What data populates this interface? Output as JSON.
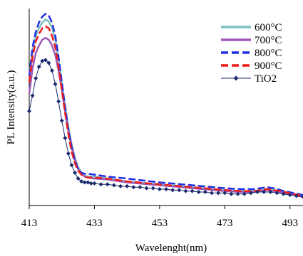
{
  "chart_data": {
    "type": "line",
    "title": "",
    "xlabel": "Wavelenght(nm)",
    "ylabel": "PL Intensity(a.u.)",
    "xlim": [
      413,
      497
    ],
    "ylim": [
      0,
      100
    ],
    "xticks": [
      413,
      433,
      453,
      473,
      493
    ],
    "xtick_labels": [
      "413",
      "433",
      "453",
      "473",
      "493"
    ],
    "yticks_shown": false,
    "grid": false,
    "legend_position": "top-right",
    "series": [
      {
        "name": "600°C",
        "color": "#7fbfbf",
        "dash": "solid",
        "marker": "none",
        "x": [
          413,
          414,
          415,
          416,
          417,
          418,
          419,
          420,
          421,
          422,
          423,
          424,
          425,
          426,
          427,
          428,
          429,
          430,
          431,
          433,
          437,
          443,
          453,
          463,
          473,
          478,
          482,
          484,
          486,
          488,
          490,
          494,
          497
        ],
        "y": [
          66,
          80,
          88,
          92,
          95,
          96.5,
          95.5,
          92,
          86,
          76,
          64,
          52,
          41,
          32,
          25,
          20,
          17,
          15.5,
          15,
          15,
          14,
          12.5,
          11,
          9.5,
          8,
          7.5,
          7.5,
          8,
          8.5,
          8,
          7.5,
          6,
          5
        ]
      },
      {
        "name": "700°C",
        "color": "#9b59b6",
        "dash": "solid",
        "marker": "none",
        "x": [
          413,
          414,
          415,
          416,
          417,
          418,
          419,
          420,
          421,
          422,
          423,
          424,
          425,
          426,
          427,
          428,
          429,
          430,
          431,
          433,
          437,
          443,
          453,
          463,
          473,
          478,
          482,
          484,
          486,
          488,
          490,
          494,
          497
        ],
        "y": [
          58,
          71,
          79,
          83,
          86,
          87,
          86,
          83,
          78,
          70,
          60,
          49,
          39,
          31,
          24,
          19,
          16.5,
          15,
          14.5,
          14,
          13.5,
          12,
          10.5,
          9,
          7.5,
          7,
          7,
          7.5,
          8,
          7.5,
          7,
          5.5,
          4.5
        ]
      },
      {
        "name": "800°C",
        "color": "#1f2fe6",
        "dash": "dashed",
        "marker": "none",
        "x": [
          413,
          414,
          415,
          416,
          417,
          418,
          419,
          420,
          421,
          422,
          423,
          424,
          425,
          426,
          427,
          428,
          429,
          430,
          431,
          433,
          437,
          443,
          453,
          463,
          473,
          478,
          482,
          484,
          486,
          488,
          490,
          494,
          497
        ],
        "y": [
          67,
          82,
          90,
          95,
          98,
          99.5,
          98.5,
          95,
          88,
          77,
          64,
          51,
          39,
          30,
          23,
          19,
          17,
          16.5,
          16.5,
          16,
          15,
          14,
          12,
          10.5,
          9,
          8.5,
          8.5,
          9,
          9.5,
          9,
          8,
          6.5,
          5.5
        ]
      },
      {
        "name": "900°C",
        "color": "#ee1c1c",
        "dash": "dashed",
        "marker": "none",
        "x": [
          413,
          414,
          415,
          416,
          417,
          418,
          419,
          420,
          421,
          422,
          423,
          424,
          425,
          426,
          427,
          428,
          429,
          430,
          431,
          433,
          437,
          443,
          453,
          463,
          473,
          478,
          482,
          484,
          486,
          488,
          490,
          494,
          497
        ],
        "y": [
          64,
          77,
          85,
          89,
          92,
          93,
          92,
          88,
          82,
          72,
          60,
          48,
          37,
          28,
          22,
          18,
          16,
          15,
          14.5,
          14.5,
          14,
          12.5,
          11,
          9.5,
          8,
          7.5,
          7.5,
          8,
          8.5,
          8,
          7.5,
          6,
          5
        ]
      },
      {
        "name": "TiO2",
        "color": "#1c2a6e",
        "dash": "solid",
        "marker": "diamond",
        "x": [
          413,
          414,
          415,
          416,
          417,
          418,
          419,
          420,
          421,
          422,
          423,
          424,
          425,
          426,
          427,
          428,
          429,
          430,
          431,
          432,
          433,
          435,
          437,
          439,
          441,
          443,
          445,
          447,
          449,
          451,
          453,
          455,
          457,
          459,
          461,
          463,
          465,
          467,
          469,
          471,
          473,
          475,
          477,
          479,
          481,
          483,
          485,
          487,
          489,
          491,
          493,
          495,
          497
        ],
        "y": [
          49,
          57,
          66,
          72,
          75,
          75.5,
          74,
          70,
          63,
          54,
          44,
          35,
          27,
          21,
          17,
          14,
          12.5,
          12,
          12,
          11.5,
          11.5,
          11,
          11,
          10.5,
          10,
          10,
          9.5,
          9.5,
          9,
          9,
          8.5,
          8.5,
          8,
          8,
          7.5,
          7.5,
          7,
          7,
          6.5,
          6.5,
          6.5,
          6,
          6,
          6,
          6.5,
          7,
          7,
          7,
          6.5,
          6,
          5.5,
          5,
          4.5
        ]
      }
    ]
  }
}
